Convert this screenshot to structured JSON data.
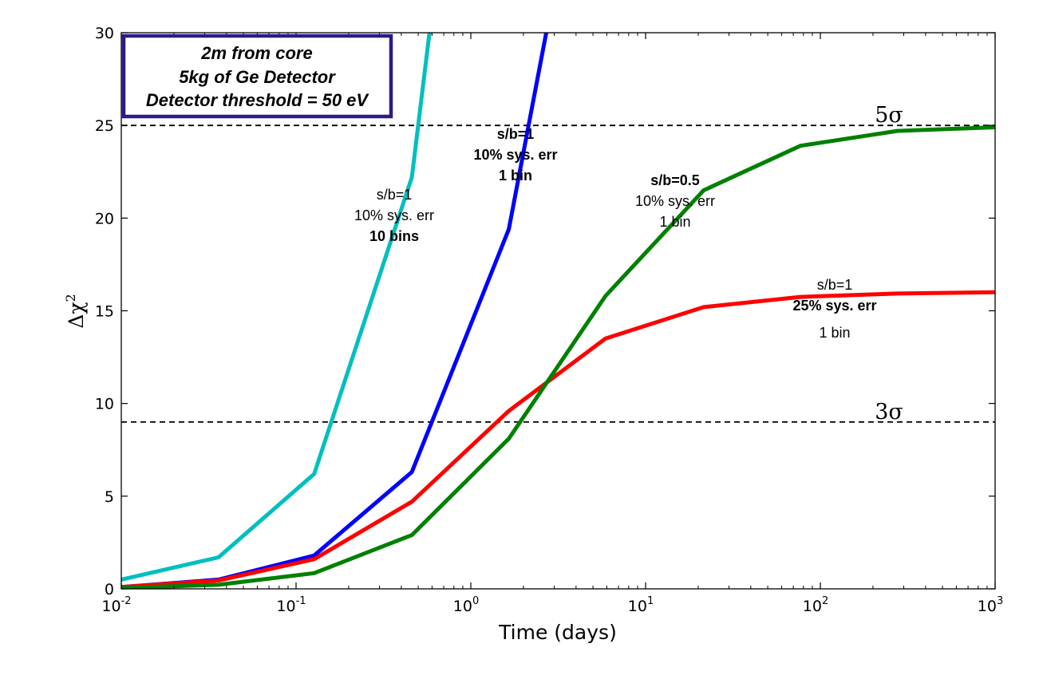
{
  "chart_data": {
    "type": "line",
    "xlabel": "Time (days)",
    "ylabel": "Δχ",
    "ylabel_superscript": "2",
    "xscale": "log",
    "xlim": [
      0.01,
      1000
    ],
    "ylim": [
      0,
      30
    ],
    "grid": false,
    "xticks": [
      {
        "value": 0.01,
        "base": "10",
        "exp": "-2"
      },
      {
        "value": 0.1,
        "base": "10",
        "exp": "-1"
      },
      {
        "value": 1,
        "base": "10",
        "exp": "0"
      },
      {
        "value": 10,
        "base": "10",
        "exp": "1"
      },
      {
        "value": 100,
        "base": "10",
        "exp": "2"
      },
      {
        "value": 1000,
        "base": "10",
        "exp": "3"
      }
    ],
    "yticks": [
      "0",
      "5",
      "10",
      "15",
      "20",
      "25",
      "30"
    ],
    "reference_lines": [
      {
        "y": 25,
        "label": "5σ"
      },
      {
        "y": 9,
        "label": "3σ"
      }
    ],
    "infobox": {
      "lines": [
        "2m from core",
        "5kg of Ge Detector",
        "Detector threshold = 50 eV"
      ],
      "border_color": "#2e1a87"
    },
    "series": [
      {
        "color": "#00bfbf",
        "x": [
          0.01,
          0.036,
          0.127,
          0.46,
          0.58
        ],
        "y": [
          0.5,
          1.7,
          6.2,
          22.2,
          30
        ]
      },
      {
        "color": "#0000ff",
        "x": [
          0.01,
          0.036,
          0.127,
          0.46,
          1.65,
          2.7
        ],
        "y": [
          0.1,
          0.5,
          1.8,
          6.3,
          19.4,
          30
        ]
      },
      {
        "color": "#ff0000",
        "x": [
          0.01,
          0.036,
          0.127,
          0.46,
          1.65,
          5.9,
          21.5,
          77,
          275,
          1000
        ],
        "y": [
          0.1,
          0.45,
          1.6,
          4.7,
          9.6,
          13.5,
          15.2,
          15.75,
          15.93,
          16.0
        ]
      },
      {
        "color": "#008000",
        "x": [
          0.01,
          0.036,
          0.127,
          0.46,
          1.65,
          5.9,
          21.5,
          77,
          275,
          1000
        ],
        "y": [
          0.05,
          0.22,
          0.85,
          2.9,
          8.1,
          15.8,
          21.5,
          23.9,
          24.7,
          24.9
        ]
      }
    ],
    "annotations": [
      {
        "lines": [
          {
            "text": "s/b=1",
            "bold": false
          },
          {
            "text": "10% sys. err",
            "bold": false
          },
          {
            "text": "10 bins",
            "bold": true
          }
        ]
      },
      {
        "lines": [
          {
            "text": "s/b=1",
            "bold": true
          },
          {
            "text": "10% sys. err",
            "bold": true
          },
          {
            "text": "1 bin",
            "bold": true
          }
        ]
      },
      {
        "lines": [
          {
            "text": "s/b=0.5",
            "bold": true
          },
          {
            "text": "10% sys. err",
            "bold": false
          },
          {
            "text": "1 bin",
            "bold": false
          }
        ]
      },
      {
        "lines": [
          {
            "text": "s/b=1",
            "bold": false
          },
          {
            "text": "25% sys. err",
            "bold": true
          },
          {
            "text": "1 bin",
            "bold": false
          }
        ]
      }
    ]
  }
}
